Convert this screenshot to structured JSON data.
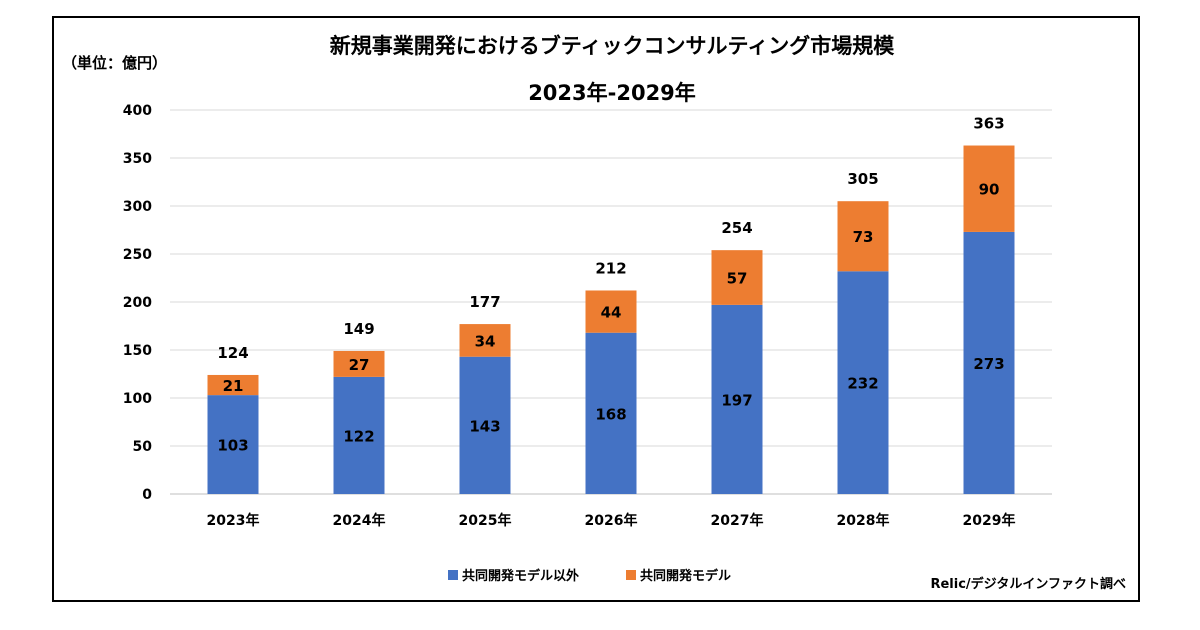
{
  "chart_data": {
    "type": "bar",
    "stacked": true,
    "title": "新規事業開発におけるブティックコンサルティング市場規模",
    "subtitle": "2023年-2029年",
    "unit_label": "（単位：億円）",
    "ylim": [
      0,
      400
    ],
    "yticks": [
      0,
      50,
      100,
      150,
      200,
      250,
      300,
      350,
      400
    ],
    "categories": [
      "2023年",
      "2024年",
      "2025年",
      "2026年",
      "2027年",
      "2028年",
      "2029年"
    ],
    "series": [
      {
        "name": "共同開発モデル以外",
        "color": "#4472C4",
        "values": [
          103,
          122,
          143,
          168,
          197,
          232,
          273
        ]
      },
      {
        "name": "共同開発モデル",
        "color": "#ED7D31",
        "values": [
          21,
          27,
          34,
          44,
          57,
          73,
          90
        ]
      }
    ],
    "totals": [
      124,
      149,
      177,
      212,
      254,
      305,
      363
    ],
    "legend_position": "bottom",
    "grid": true,
    "source": "Relic/デジタルインファクト調べ"
  }
}
